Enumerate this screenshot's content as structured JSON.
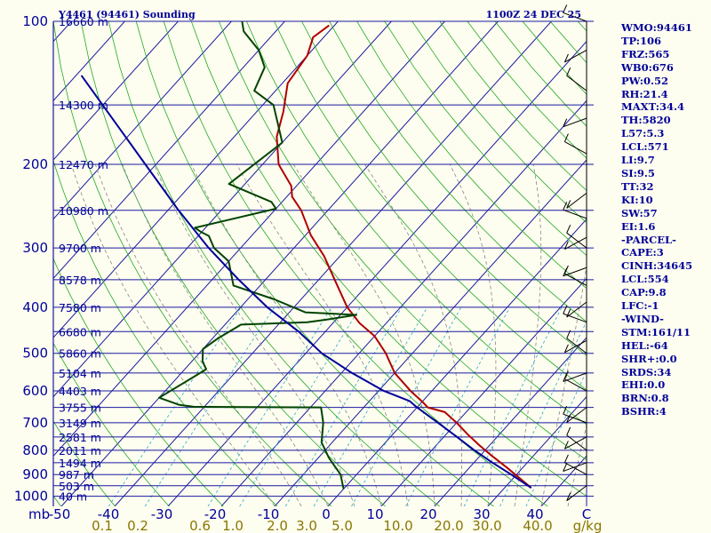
{
  "chart_data": {
    "type": "line",
    "title": "Y4461 (94461) Sounding",
    "time": "1100Z 24 DEC 25",
    "pressure_levels": [
      100,
      200,
      300,
      400,
      500,
      600,
      700,
      800,
      900,
      1000
    ],
    "y_axis_unit": "mb",
    "x_temp_ticks": [
      -50,
      -40,
      -30,
      -20,
      -10,
      0,
      10,
      20,
      30,
      40
    ],
    "x_temp_labels": [
      "-50",
      "-40",
      "-30",
      "-20",
      "-10",
      "0",
      "10",
      "20",
      "30",
      "40"
    ],
    "x_temp_unit": "C",
    "mixing_ratio_labels": [
      "0.1",
      "0.2",
      "0.6",
      "1.0",
      "2.0",
      "3.0",
      "5.0",
      "10.0",
      "20.0",
      "30.0",
      "40.0"
    ],
    "mixing_ratio_unit": "g/kg",
    "height_labels": [
      {
        "p": 100,
        "text": "16660 m"
      },
      {
        "p": 150,
        "text": "14300 m"
      },
      {
        "p": 200,
        "text": "12470 m"
      },
      {
        "p": 250,
        "text": "10980 m"
      },
      {
        "p": 300,
        "text": "9700 m"
      },
      {
        "p": 350,
        "text": "8578 m"
      },
      {
        "p": 400,
        "text": "7580 m"
      },
      {
        "p": 450,
        "text": "6680 m"
      },
      {
        "p": 500,
        "text": "5860 m"
      },
      {
        "p": 550,
        "text": "5104 m"
      },
      {
        "p": 600,
        "text": "4403 m"
      },
      {
        "p": 650,
        "text": "3755 m"
      },
      {
        "p": 700,
        "text": "3149 m"
      },
      {
        "p": 750,
        "text": "2581 m"
      },
      {
        "p": 800,
        "text": "2011 m"
      },
      {
        "p": 850,
        "text": "1494 m"
      },
      {
        "p": 900,
        "text": "987 m"
      },
      {
        "p": 950,
        "text": "503 m"
      },
      {
        "p": 1000,
        "text": "40 m"
      }
    ],
    "series": [
      {
        "name": "Temperature",
        "color": "#b00000",
        "points": [
          [
            960,
            35
          ],
          [
            870,
            27
          ],
          [
            820,
            22
          ],
          [
            780,
            18
          ],
          [
            740,
            14
          ],
          [
            700,
            10
          ],
          [
            665,
            6
          ],
          [
            650,
            2
          ],
          [
            632,
            0
          ],
          [
            600,
            -4
          ],
          [
            550,
            -10
          ],
          [
            500,
            -15
          ],
          [
            460,
            -20
          ],
          [
            432,
            -25
          ],
          [
            400,
            -30
          ],
          [
            350,
            -37
          ],
          [
            312,
            -43
          ],
          [
            282,
            -49
          ],
          [
            250,
            -55
          ],
          [
            234,
            -59
          ],
          [
            222,
            -61
          ],
          [
            200,
            -67
          ],
          [
            175,
            -72
          ],
          [
            155,
            -75
          ],
          [
            135,
            -79
          ],
          [
            118,
            -80
          ],
          [
            108,
            -82
          ],
          [
            102,
            -81
          ]
        ]
      },
      {
        "name": "Dewpoint",
        "color": "#004400",
        "points": [
          [
            965,
            0
          ],
          [
            900,
            -3
          ],
          [
            830,
            -8
          ],
          [
            770,
            -12
          ],
          [
            700,
            -15
          ],
          [
            650,
            -18
          ],
          [
            648,
            -42
          ],
          [
            642,
            -45
          ],
          [
            620,
            -50
          ],
          [
            560,
            -47
          ],
          [
            540,
            -46
          ],
          [
            520,
            -48
          ],
          [
            490,
            -50
          ],
          [
            465,
            -49
          ],
          [
            435,
            -47
          ],
          [
            430,
            -35
          ],
          [
            425,
            -32
          ],
          [
            415,
            -27
          ],
          [
            410,
            -37
          ],
          [
            385,
            -45
          ],
          [
            360,
            -55
          ],
          [
            320,
            -60
          ],
          [
            300,
            -65
          ],
          [
            283,
            -68
          ],
          [
            278,
            -70
          ],
          [
            272,
            -72
          ],
          [
            248,
            -60
          ],
          [
            240,
            -62
          ],
          [
            220,
            -73
          ],
          [
            180,
            -70
          ],
          [
            150,
            -78
          ],
          [
            140,
            -84
          ],
          [
            125,
            -86
          ],
          [
            115,
            -90
          ],
          [
            105,
            -96
          ],
          [
            100,
            -98
          ]
        ]
      },
      {
        "name": "Parcel",
        "color": "#000099",
        "points": [
          [
            960,
            35
          ],
          [
            900,
            29
          ],
          [
            850,
            23.5
          ],
          [
            800,
            18
          ],
          [
            750,
            12.5
          ],
          [
            700,
            6.5
          ],
          [
            650,
            0
          ],
          [
            630,
            -2.5
          ],
          [
            600,
            -9
          ],
          [
            550,
            -18
          ],
          [
            500,
            -27
          ],
          [
            450,
            -35
          ],
          [
            400,
            -45
          ],
          [
            350,
            -55
          ],
          [
            300,
            -66
          ],
          [
            250,
            -78
          ],
          [
            200,
            -92
          ],
          [
            160,
            -106
          ],
          [
            130,
            -119
          ]
        ]
      }
    ],
    "wind_barbs_p": [
      100,
      115,
      140,
      160,
      190,
      230,
      260,
      285,
      300,
      330,
      360,
      390,
      430,
      470,
      500,
      550,
      600,
      650,
      700,
      750,
      800,
      850,
      900,
      950
    ],
    "indices": [
      "WMO:94461",
      "TP:106",
      "FRZ:565",
      "WB0:676",
      "PW:0.52",
      "RH:21.4",
      "MAXT:34.4",
      "TH:5820",
      "L57:5.3",
      "LCL:571",
      "LI:9.7",
      "SI:9.5",
      "TT:32",
      "KI:10",
      "SW:57",
      "EI:1.6",
      "-PARCEL-",
      "CAPE:3",
      "CINH:34645",
      "LCL:554",
      "CAP:9.8",
      "LFC:-1",
      "-WIND-",
      "STM:161/11",
      "HEL:-64",
      "SHR+:0.0",
      "SRDS:34",
      "EHI:0.0",
      "BRN:0.8",
      "BSHR:4"
    ]
  }
}
